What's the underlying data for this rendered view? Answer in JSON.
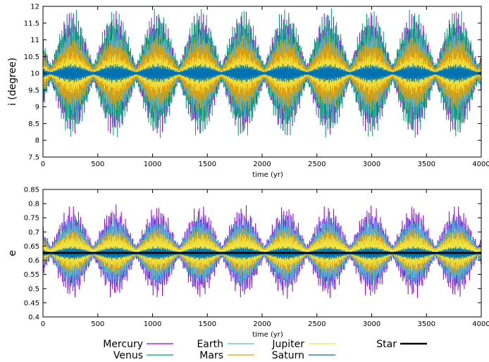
{
  "colors": {
    "Mercury": "#9400d3",
    "Venus": "#009e73",
    "Earth": "#56b4e9",
    "Mars": "#e69f00",
    "Jupiter": "#f0e442",
    "Saturn": "#0072b2",
    "Star": "#000000"
  },
  "legend": [
    "Mercury",
    "Venus",
    "Earth",
    "Mars",
    "Jupiter",
    "Saturn",
    "Star"
  ],
  "chart_data": [
    {
      "type": "line",
      "xlabel": "time (yr)",
      "ylabel": "i (degree)",
      "xlim": [
        0,
        4000
      ],
      "ylim": [
        7.5,
        12
      ],
      "xticks": [
        0,
        500,
        1000,
        1500,
        2000,
        2500,
        3000,
        3500,
        4000
      ],
      "yticks": [
        7.5,
        8,
        8.5,
        9,
        9.5,
        10,
        10.5,
        11,
        11.5,
        12
      ],
      "grid": false,
      "envelope_period_yr": 390,
      "envelope_phase_yr": 70,
      "series": [
        {
          "name": "Mercury",
          "center": 10.0,
          "amplitude": 1.9
        },
        {
          "name": "Venus",
          "center": 10.0,
          "amplitude": 2.0
        },
        {
          "name": "Earth",
          "center": 10.0,
          "amplitude": 1.4
        },
        {
          "name": "Mars",
          "center": 10.0,
          "amplitude": 1.2
        },
        {
          "name": "Jupiter",
          "center": 10.0,
          "amplitude": 0.65
        },
        {
          "name": "Saturn",
          "center": 10.0,
          "amplitude": 0.3
        }
      ]
    },
    {
      "type": "line",
      "xlabel": "time (yr)",
      "ylabel": "e",
      "xlim": [
        0,
        4000
      ],
      "ylim": [
        0.4,
        0.85
      ],
      "xticks": [
        0,
        500,
        1000,
        1500,
        2000,
        2500,
        3000,
        3500,
        4000
      ],
      "yticks": [
        0.4,
        0.45,
        0.5,
        0.55,
        0.6,
        0.65,
        0.7,
        0.75,
        0.8,
        0.85
      ],
      "grid": false,
      "envelope_period_yr": 390,
      "envelope_phase_yr": 70,
      "series": [
        {
          "name": "Mercury",
          "center": 0.63,
          "amplitude": 0.17
        },
        {
          "name": "Venus",
          "center": 0.63,
          "amplitude": 0.12
        },
        {
          "name": "Earth",
          "center": 0.63,
          "amplitude": 0.14
        },
        {
          "name": "Mars",
          "center": 0.63,
          "amplitude": 0.09
        },
        {
          "name": "Jupiter",
          "center": 0.63,
          "amplitude": 0.07
        },
        {
          "name": "Saturn",
          "center": 0.625,
          "amplitude": 0.025
        },
        {
          "name": "Star",
          "center": 0.626,
          "amplitude": 0.0
        }
      ]
    }
  ]
}
